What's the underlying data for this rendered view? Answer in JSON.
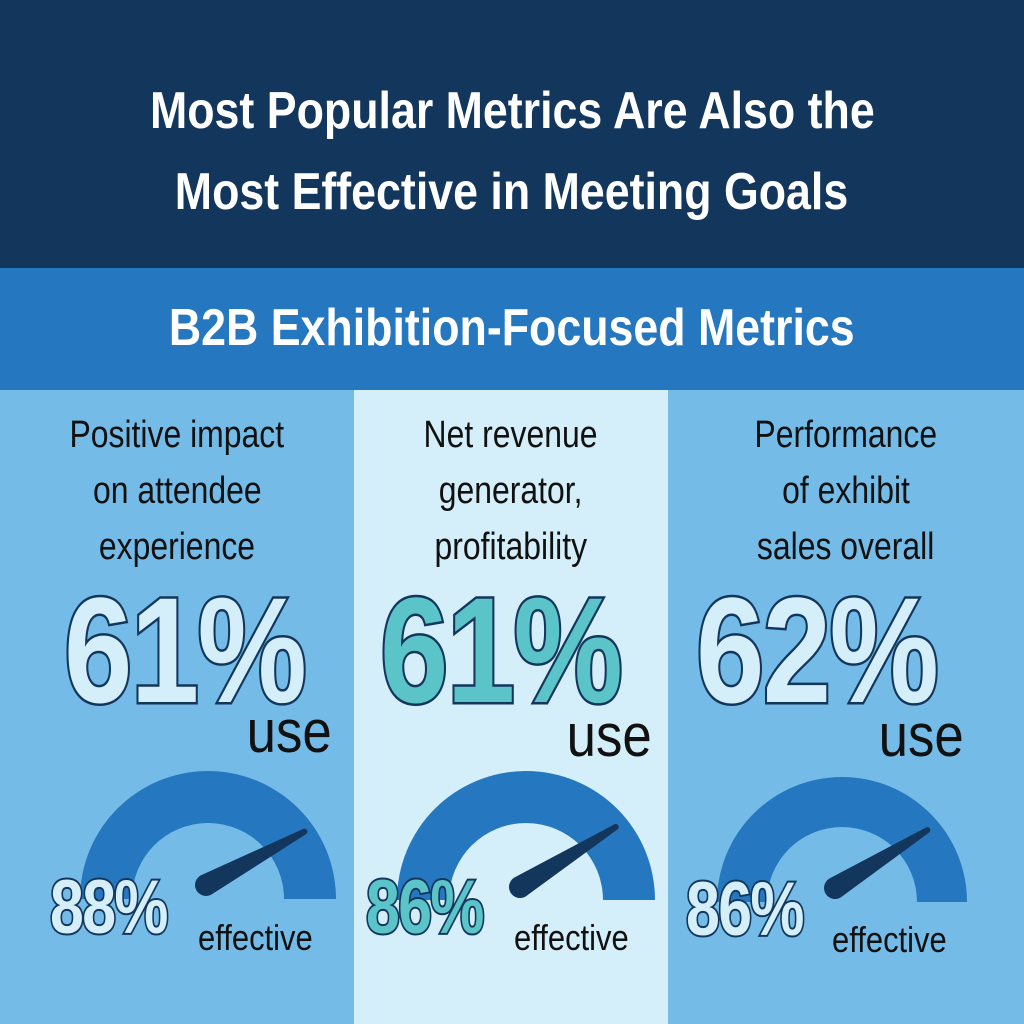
{
  "header": {
    "title_line1": "Most Popular Metrics Are Also the",
    "title_line2": "Most Effective in Meeting Goals"
  },
  "subheader": {
    "title": "B2B Exhibition-Focused Metrics"
  },
  "colors": {
    "header_bg": "#13365c",
    "subheader_bg": "#2577bf",
    "column_bg": "#74bbe8",
    "column_highlight_bg": "#d4eefa",
    "gauge_arc": "#2577bf",
    "needle": "#13365c",
    "number_light": "#d4eefa",
    "number_teal": "#5bc4c9",
    "number_outline": "#13365c"
  },
  "metrics": [
    {
      "label_lines": [
        "Positive impact",
        "on attendee",
        "experience"
      ],
      "use_pct": "61%",
      "use_label": "use",
      "effective_pct": "88%",
      "effective_value": 88,
      "effective_label": "effective",
      "highlighted": false
    },
    {
      "label_lines": [
        "Net revenue",
        "generator,",
        "profitability"
      ],
      "use_pct": "61%",
      "use_label": "use",
      "effective_pct": "86%",
      "effective_value": 86,
      "effective_label": "effective",
      "highlighted": true
    },
    {
      "label_lines": [
        "Performance",
        "of exhibit",
        "sales overall"
      ],
      "use_pct": "62%",
      "use_label": "use",
      "effective_pct": "86%",
      "effective_value": 86,
      "effective_label": "effective",
      "highlighted": false
    }
  ],
  "chart_data": {
    "type": "gauge",
    "title": "B2B Exhibition-Focused Metrics",
    "categories": [
      "Positive impact on attendee experience",
      "Net revenue generator, profitability",
      "Performance of exhibit sales overall"
    ],
    "series": [
      {
        "name": "use",
        "values": [
          61,
          61,
          62
        ]
      },
      {
        "name": "effective",
        "values": [
          88,
          86,
          86
        ]
      }
    ],
    "ylim": [
      0,
      100
    ]
  }
}
